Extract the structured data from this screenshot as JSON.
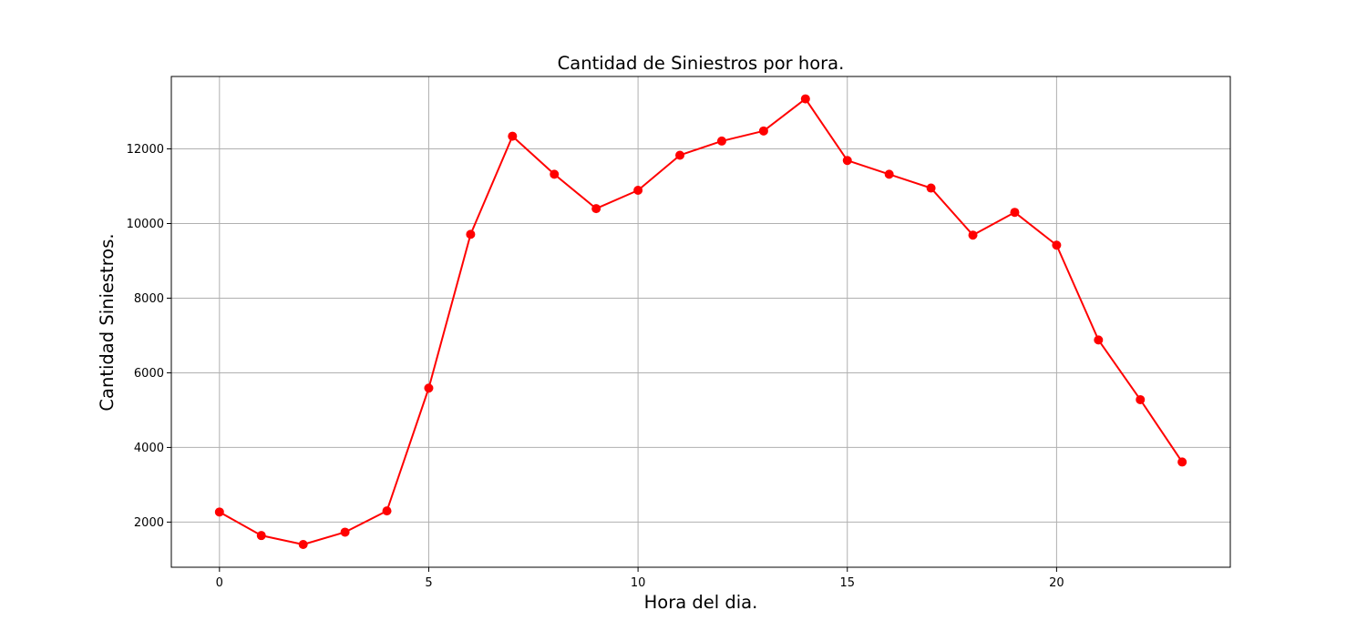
{
  "chart_data": {
    "type": "line",
    "title": "Cantidad de Siniestros por hora.",
    "xlabel": "Hora del dia.",
    "ylabel": "Cantidad Siniestros.",
    "x": [
      0,
      1,
      2,
      3,
      4,
      5,
      6,
      7,
      8,
      9,
      10,
      11,
      12,
      13,
      14,
      15,
      16,
      17,
      18,
      19,
      20,
      21,
      22,
      23
    ],
    "series": [
      {
        "values": [
          2270,
          1640,
          1400,
          1730,
          2300,
          5590,
          9710,
          12340,
          11320,
          10400,
          10890,
          11830,
          12210,
          12480,
          13340,
          11690,
          11320,
          10950,
          9690,
          10300,
          9420,
          6880,
          5280,
          3610
        ],
        "color": "#ff0000",
        "marker": "circle"
      }
    ],
    "xlim": [
      -1.15,
      24.15
    ],
    "ylim": [
      790,
      13940
    ],
    "xticks": [
      0,
      5,
      10,
      15,
      20
    ],
    "yticks": [
      2000,
      4000,
      6000,
      8000,
      10000,
      12000
    ],
    "grid": true
  }
}
